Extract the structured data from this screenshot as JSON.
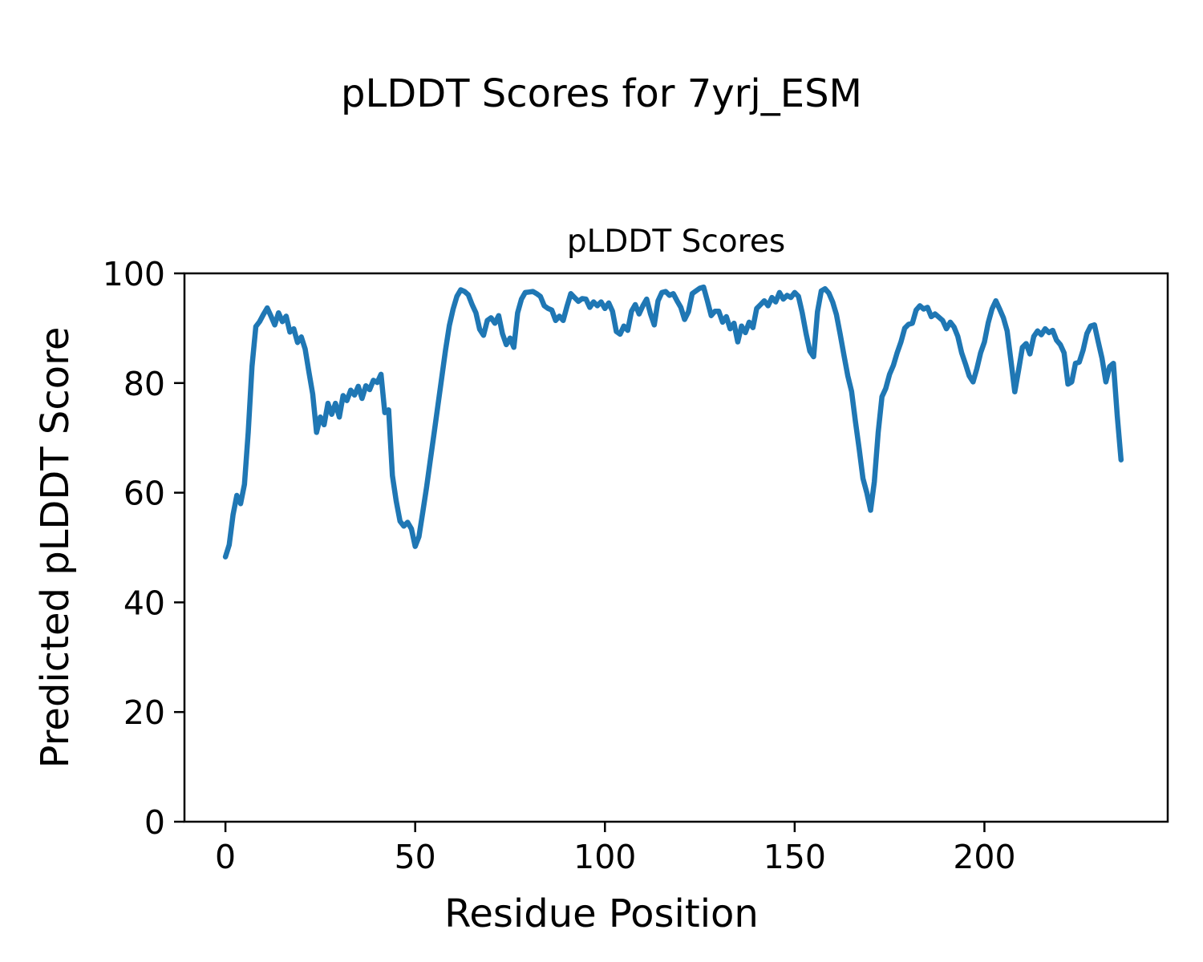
{
  "figure": {
    "suptitle": "pLDDT Scores for 7yrj_ESM",
    "background_color": "#ffffff",
    "text_color": "#000000"
  },
  "chart_data": {
    "type": "line",
    "title": "pLDDT Scores",
    "xlabel": "Residue Position",
    "ylabel": "Predicted pLDDT Score",
    "legend": null,
    "grid": false,
    "line_color": "#1f77b4",
    "xlim": [
      -10.8,
      248.3
    ],
    "ylim": [
      0,
      100
    ],
    "x_ticks": [
      0,
      50,
      100,
      150,
      200
    ],
    "y_ticks": [
      0,
      20,
      40,
      60,
      80,
      100
    ],
    "x_start": 0,
    "x_step": 1,
    "values": [
      48.3,
      50.5,
      56.0,
      59.5,
      58.0,
      61.5,
      71.0,
      83.0,
      90.3,
      91.2,
      92.5,
      93.7,
      92.2,
      90.6,
      92.8,
      91.2,
      92.2,
      89.3,
      89.9,
      87.4,
      88.4,
      86.2,
      82.0,
      78.0,
      71.0,
      73.8,
      72.4,
      76.3,
      74.3,
      76.3,
      73.8,
      77.7,
      76.8,
      78.7,
      77.8,
      79.4,
      77.2,
      79.5,
      78.8,
      80.5,
      80.1,
      81.6,
      74.6,
      75.1,
      63.1,
      58.5,
      54.8,
      53.9,
      54.6,
      53.4,
      50.2,
      52.0,
      56.5,
      61.0,
      66.0,
      71.0,
      76.0,
      81.0,
      86.0,
      90.5,
      93.5,
      95.8,
      97.0,
      96.7,
      96.1,
      94.3,
      92.8,
      89.8,
      88.7,
      91.4,
      91.9,
      90.9,
      92.3,
      89.0,
      87.0,
      88.2,
      86.5,
      92.8,
      95.3,
      96.5,
      96.6,
      96.7,
      96.3,
      95.8,
      94.1,
      93.6,
      93.3,
      91.4,
      92.2,
      91.4,
      94.0,
      96.3,
      95.6,
      94.9,
      95.4,
      95.3,
      93.8,
      94.8,
      94.1,
      94.8,
      93.6,
      94.6,
      93.1,
      89.4,
      88.9,
      90.4,
      89.6,
      93.1,
      94.3,
      92.6,
      94.1,
      95.3,
      92.6,
      90.6,
      95.0,
      96.5,
      96.7,
      96.0,
      96.3,
      95.0,
      93.8,
      91.6,
      93.0,
      96.3,
      96.8,
      97.3,
      97.5,
      95.0,
      92.3,
      93.1,
      93.1,
      91.1,
      92.1,
      89.9,
      90.9,
      87.5,
      90.4,
      89.2,
      91.1,
      90.1,
      93.6,
      94.3,
      95.0,
      94.1,
      95.6,
      94.8,
      96.5,
      95.3,
      96.0,
      95.6,
      96.5,
      95.8,
      92.8,
      89.0,
      85.8,
      84.8,
      93.0,
      96.8,
      97.2,
      96.4,
      94.8,
      92.5,
      88.9,
      85.0,
      81.3,
      78.5,
      73.0,
      68.0,
      62.6,
      60.0,
      56.8,
      62.0,
      71.0,
      77.5,
      79.0,
      81.6,
      83.2,
      85.5,
      87.5,
      90.0,
      90.7,
      90.9,
      93.3,
      94.1,
      93.5,
      93.8,
      92.1,
      92.6,
      92.0,
      91.4,
      89.9,
      91.1,
      90.2,
      88.5,
      85.5,
      83.5,
      81.3,
      80.2,
      82.6,
      85.5,
      87.5,
      91.0,
      93.5,
      95.0,
      93.5,
      91.9,
      89.5,
      84.0,
      78.4,
      82.3,
      86.5,
      87.2,
      85.3,
      88.5,
      89.5,
      88.8,
      89.9,
      89.2,
      89.6,
      87.8,
      87.0,
      85.5,
      79.8,
      80.2,
      83.6,
      83.8,
      86.0,
      89.0,
      90.4,
      90.6,
      87.5,
      84.5,
      80.2,
      83.0,
      83.6,
      74.0,
      66.0
    ]
  }
}
